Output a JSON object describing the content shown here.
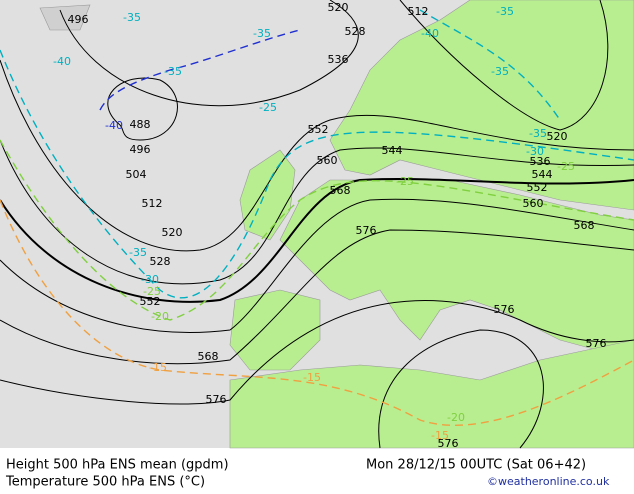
{
  "map": {
    "height_labels": [
      "496",
      "520",
      "512",
      "528",
      "536",
      "488",
      "496",
      "504",
      "512",
      "520",
      "528",
      "552",
      "560",
      "568",
      "576",
      "544",
      "520",
      "536",
      "544",
      "552",
      "560",
      "568",
      "552",
      "568",
      "576",
      "576",
      "576",
      "576"
    ],
    "temperature_labels": [
      "-35",
      "-40",
      "-35",
      "-35",
      "-40",
      "-35",
      "-35",
      "-40",
      "-25",
      "-35",
      "-30",
      "-25",
      "-25",
      "-35",
      "-30",
      "-25",
      "-20",
      "-15",
      "-15",
      "-20",
      "-15"
    ]
  },
  "footer": {
    "height_title": "Height 500 hPa ENS mean (gpdm)",
    "temperature_title": "Temperature 500 hPa ENS (°C)",
    "run": "Mon 28/12/15 00UTC (Sat 06+42)",
    "credit": "©weatheronline.co.uk"
  }
}
